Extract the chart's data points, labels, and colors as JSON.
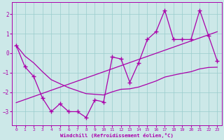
{
  "xlabel": "Windchill (Refroidissement éolien,°C)",
  "bg_color": "#cce8e8",
  "grid_color": "#99cccc",
  "line_color": "#aa00aa",
  "x_data": [
    0,
    1,
    2,
    3,
    4,
    5,
    6,
    7,
    8,
    9,
    10,
    11,
    12,
    13,
    14,
    15,
    16,
    17,
    18,
    19,
    20,
    21,
    22,
    23
  ],
  "y_data": [
    0.4,
    -0.7,
    -1.2,
    -2.3,
    -3.0,
    -2.6,
    -3.0,
    -3.0,
    -3.3,
    -2.4,
    -2.5,
    -0.2,
    -0.3,
    -1.5,
    -0.5,
    0.7,
    1.1,
    2.2,
    0.7,
    0.7,
    0.7,
    2.2,
    0.9,
    -0.4
  ],
  "ylim": [
    -3.7,
    2.6
  ],
  "xlim": [
    -0.5,
    23.5
  ],
  "xticks": [
    0,
    1,
    2,
    3,
    4,
    5,
    6,
    7,
    8,
    9,
    10,
    11,
    12,
    13,
    14,
    15,
    16,
    17,
    18,
    19,
    20,
    21,
    22,
    23
  ],
  "yticks": [
    -3,
    -2,
    -1,
    0,
    1,
    2
  ]
}
